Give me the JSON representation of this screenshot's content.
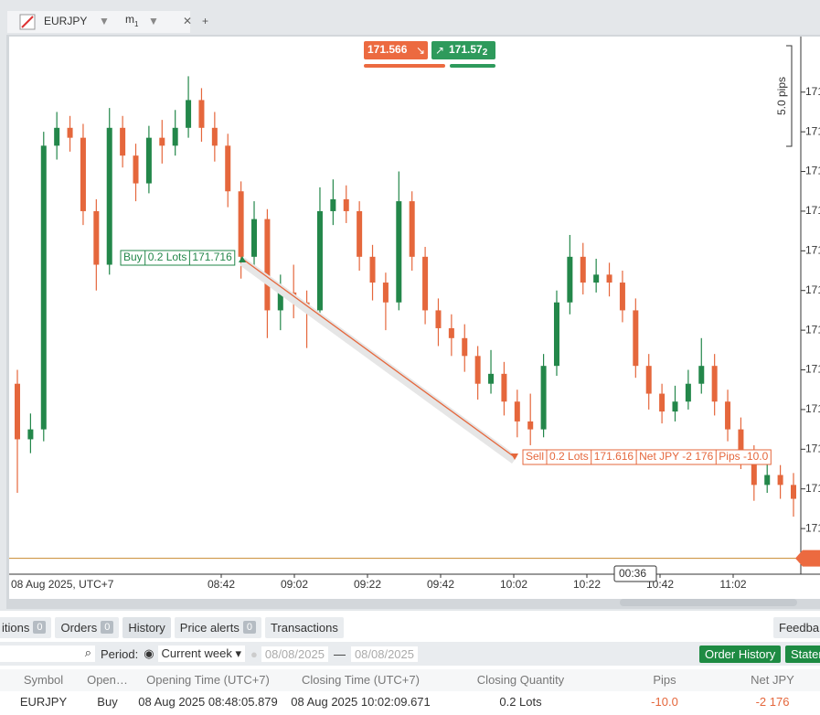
{
  "tab": {
    "symbol": "EURJPY",
    "timeframe": "m",
    "timeframe_sub": "1"
  },
  "chart_data": {
    "type": "candlestick",
    "open": [
      171.653,
      171.625,
      171.63,
      171.773,
      171.782,
      171.777,
      171.74,
      171.713,
      171.782,
      171.768,
      171.754,
      171.777,
      171.773,
      171.782,
      171.796,
      171.782,
      171.773,
      171.75,
      171.717,
      171.736,
      171.69,
      171.699,
      171.694,
      171.69,
      171.74,
      171.746,
      171.74,
      171.717,
      171.704,
      171.694,
      171.745,
      171.717,
      171.69,
      171.681,
      171.676,
      171.667,
      171.653,
      171.658,
      171.644,
      171.634,
      171.63,
      171.662,
      171.694,
      171.717,
      171.704,
      171.708,
      171.704,
      171.69,
      171.662,
      171.648,
      171.639,
      171.644,
      171.653,
      171.662,
      171.644,
      171.63,
      171.616,
      171.602,
      171.607,
      171.602
    ],
    "high": [
      171.66,
      171.638,
      171.78,
      171.79,
      171.788,
      171.784,
      171.746,
      171.792,
      171.788,
      171.774,
      171.783,
      171.786,
      171.791,
      171.808,
      171.802,
      171.79,
      171.779,
      171.755,
      171.745,
      171.741,
      171.708,
      171.713,
      171.7,
      171.752,
      171.756,
      171.753,
      171.745,
      171.723,
      171.709,
      171.76,
      171.75,
      171.722,
      171.696,
      171.688,
      171.683,
      171.672,
      171.67,
      171.664,
      171.65,
      171.648,
      171.668,
      171.7,
      171.728,
      171.724,
      171.716,
      171.714,
      171.71,
      171.696,
      171.668,
      171.653,
      171.652,
      171.66,
      171.676,
      171.668,
      171.65,
      171.636,
      171.622,
      171.615,
      171.612,
      171.608
    ],
    "low": [
      171.598,
      171.618,
      171.624,
      171.766,
      171.77,
      171.733,
      171.7,
      171.708,
      171.762,
      171.745,
      171.749,
      171.764,
      171.768,
      171.777,
      171.775,
      171.765,
      171.742,
      171.706,
      171.711,
      171.676,
      171.68,
      171.686,
      171.671,
      171.684,
      171.733,
      171.734,
      171.71,
      171.695,
      171.68,
      171.69,
      171.71,
      171.683,
      171.672,
      171.667,
      171.659,
      171.645,
      171.648,
      171.637,
      171.626,
      171.622,
      171.626,
      171.657,
      171.688,
      171.698,
      171.699,
      171.697,
      171.684,
      171.656,
      171.64,
      171.633,
      171.634,
      171.64,
      171.648,
      171.637,
      171.624,
      171.61,
      171.594,
      171.598,
      171.595,
      171.586
    ],
    "close": [
      171.625,
      171.63,
      171.773,
      171.782,
      171.777,
      171.74,
      171.713,
      171.782,
      171.768,
      171.754,
      171.777,
      171.773,
      171.782,
      171.796,
      171.782,
      171.773,
      171.75,
      171.717,
      171.736,
      171.69,
      171.699,
      171.694,
      171.69,
      171.74,
      171.746,
      171.74,
      171.717,
      171.704,
      171.694,
      171.745,
      171.717,
      171.69,
      171.681,
      171.676,
      171.667,
      171.653,
      171.658,
      171.644,
      171.634,
      171.63,
      171.662,
      171.694,
      171.717,
      171.704,
      171.708,
      171.704,
      171.69,
      171.662,
      171.648,
      171.639,
      171.644,
      171.653,
      171.662,
      171.644,
      171.63,
      171.616,
      171.602,
      171.607,
      171.602,
      171.595
    ],
    "up_color": "#23874a",
    "down_color": "#e5673c",
    "ylim": [
      171.557,
      171.828
    ],
    "yticks": [
      {
        "value": 171.8,
        "label": "171"
      },
      {
        "value": 171.78,
        "label": "171"
      },
      {
        "value": 171.76,
        "label": "171"
      },
      {
        "value": 171.74,
        "label": "171"
      },
      {
        "value": 171.72,
        "label": "171"
      },
      {
        "value": 171.7,
        "label": "171"
      },
      {
        "value": 171.68,
        "label": "171"
      },
      {
        "value": 171.66,
        "label": "171"
      },
      {
        "value": 171.64,
        "label": "171"
      },
      {
        "value": 171.62,
        "label": "171"
      },
      {
        "value": 171.6,
        "label": "171"
      },
      {
        "value": 171.58,
        "label": "171"
      }
    ],
    "grid": false,
    "date_label": "08 Aug 2025, UTC+7",
    "x_labels": [
      "08:42",
      "09:02",
      "09:22",
      "09:42",
      "10:02",
      "10:22",
      "10:42",
      "11:02"
    ],
    "bid": "171.566",
    "ask": "171.57",
    "ask_sub": "2",
    "scale_label": "5.0 pips",
    "countdown": "00:36",
    "current_price": 171.565,
    "buy": {
      "side": "Buy",
      "lots": "0.2 Lots",
      "price": 171.716
    },
    "sell": {
      "side": "Sell",
      "lots": "0.2 Lots",
      "price": 171.616,
      "net": "Net JPY -2 176",
      "pips": "Pips -10.0"
    }
  },
  "bottom": {
    "tabs": [
      {
        "label": "itions",
        "count": "0"
      },
      {
        "label": "Orders",
        "count": "0"
      },
      {
        "label": "History"
      },
      {
        "label": "Price alerts",
        "count": "0"
      },
      {
        "label": "Transactions"
      }
    ],
    "feedback": "Feedba",
    "period_label": "Period:",
    "period": "Current week",
    "date_from": "08/08/2025",
    "dash": "—",
    "date_to": "08/08/2025",
    "order_history": "Order History",
    "statement": "Statem",
    "table": {
      "headers": [
        "Symbol",
        "Open…",
        "Opening Time (UTC+7)",
        "Closing Time (UTC+7)",
        "Closing Quantity",
        "Pips",
        "Net JPY"
      ],
      "rows": [
        [
          "EURJPY",
          "Buy",
          "08 Aug 2025 08:48:05.879",
          "08 Aug 2025 10:02:09.671",
          "0.2 Lots",
          "-10.0",
          "-2 176"
        ]
      ]
    }
  }
}
